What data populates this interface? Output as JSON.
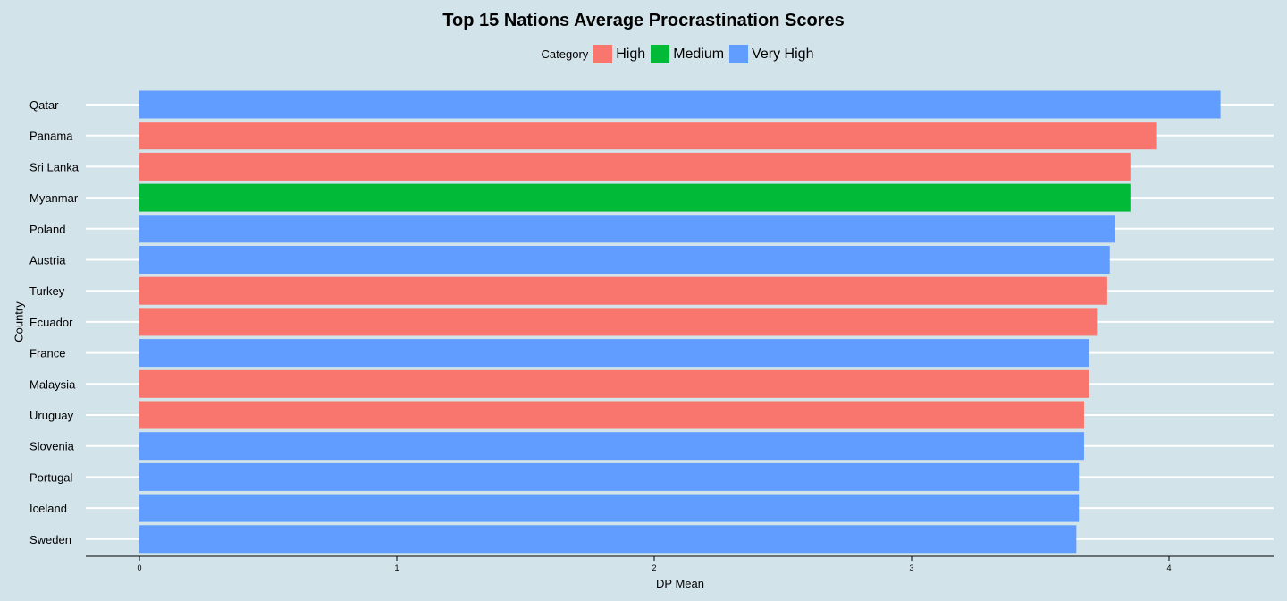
{
  "chart_data": {
    "type": "bar",
    "orientation": "horizontal",
    "title": "Top 15 Nations Average Procrastination Scores",
    "xlabel": "DP Mean",
    "ylabel": "Country",
    "xlim": [
      0,
      4.41
    ],
    "x_ticks": [
      "0",
      "1",
      "2",
      "3",
      "4"
    ],
    "grid": "horizontal-only",
    "legend": {
      "title": "Category",
      "placement": "top",
      "entries": [
        {
          "label": "High",
          "color": "#F8766D"
        },
        {
          "label": "Medium",
          "color": "#00BA38"
        },
        {
          "label": "Very High",
          "color": "#619CFF"
        }
      ]
    },
    "categories": [
      "Qatar",
      "Panama",
      "Sri Lanka",
      "Myanmar",
      "Poland",
      "Austria",
      "Turkey",
      "Ecuador",
      "France",
      "Malaysia",
      "Uruguay",
      "Slovenia",
      "Portugal",
      "Iceland",
      "Sweden"
    ],
    "values": [
      4.2,
      3.95,
      3.85,
      3.85,
      3.79,
      3.77,
      3.76,
      3.72,
      3.69,
      3.69,
      3.67,
      3.67,
      3.65,
      3.65,
      3.64
    ],
    "bar_category": [
      "Very High",
      "High",
      "High",
      "Medium",
      "Very High",
      "Very High",
      "High",
      "High",
      "Very High",
      "High",
      "High",
      "Very High",
      "Very High",
      "Very High",
      "Very High"
    ]
  }
}
